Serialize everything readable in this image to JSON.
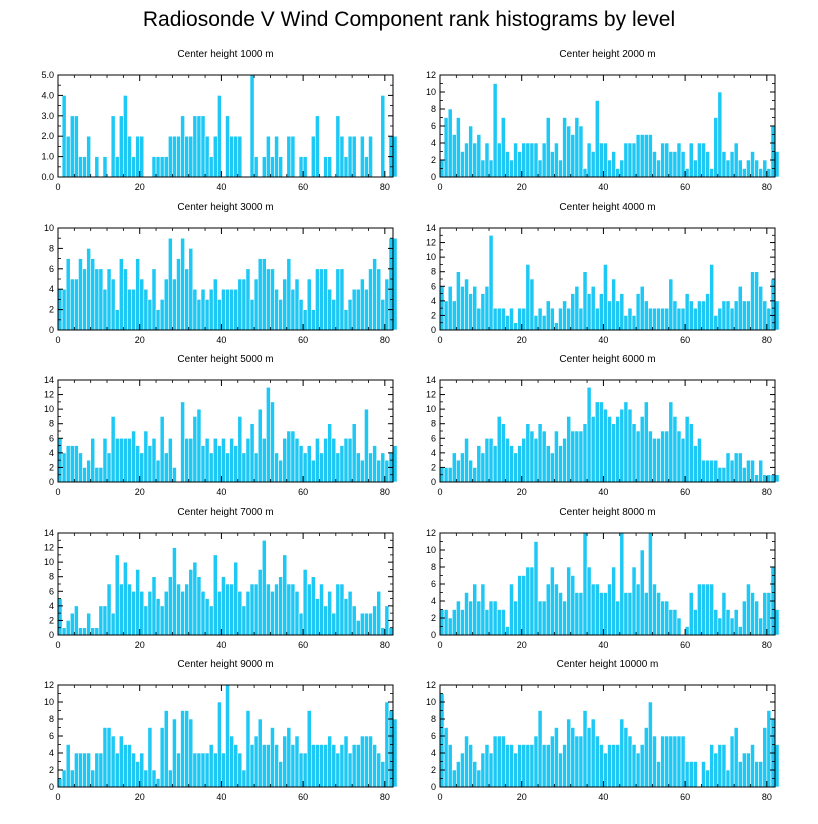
{
  "title": "Radiosonde V Wind Component rank histograms by level",
  "colors": {
    "bar": "#1ec8f5",
    "bar_edge": "#ffffff",
    "axis": "#000000"
  },
  "chart_data": [
    {
      "type": "bar",
      "title": "Center height 1000 m",
      "xlim": [
        0,
        82
      ],
      "ylim": [
        0,
        5
      ],
      "xticks": [
        0,
        20,
        40,
        60,
        80
      ],
      "yticks": [
        0,
        1,
        2,
        3,
        4,
        5
      ],
      "ytick_labels": [
        "0.0",
        "1.0",
        "2.0",
        "3.0",
        "4.0",
        "5.0"
      ],
      "values": [
        0,
        4,
        2,
        3,
        3,
        1,
        1,
        2,
        0,
        1,
        0,
        1,
        0,
        3,
        1,
        3,
        4,
        2,
        1,
        2,
        2,
        0,
        0,
        1,
        1,
        1,
        1,
        2,
        2,
        2,
        3,
        2,
        2,
        3,
        3,
        3,
        2,
        1,
        2,
        4,
        0,
        3,
        2,
        2,
        2,
        0,
        0,
        5,
        1,
        0,
        1,
        2,
        1,
        2,
        1,
        0,
        2,
        2,
        0,
        1,
        1,
        0,
        2,
        3,
        0,
        1,
        1,
        0,
        3,
        2,
        1,
        2,
        2,
        0,
        2,
        1,
        2,
        0,
        0,
        4,
        0,
        2,
        2
      ]
    },
    {
      "type": "bar",
      "title": "Center height 2000 m",
      "xlim": [
        0,
        82
      ],
      "ylim": [
        0,
        12
      ],
      "xticks": [
        0,
        20,
        40,
        60,
        80
      ],
      "yticks": [
        0,
        2,
        4,
        6,
        8,
        10,
        12
      ],
      "ytick_labels": [
        "0",
        "2",
        "4",
        "6",
        "8",
        "10",
        "12"
      ],
      "values": [
        2,
        7,
        8,
        5,
        7,
        3,
        4,
        6,
        4,
        5,
        2,
        4,
        2,
        11,
        4,
        7,
        3,
        2,
        4,
        3,
        4,
        4,
        4,
        4,
        2,
        4,
        7,
        3,
        4,
        2,
        7,
        6,
        5,
        7,
        6,
        1,
        4,
        3,
        9,
        4,
        4,
        2,
        3,
        1,
        2,
        4,
        4,
        4,
        5,
        5,
        5,
        5,
        3,
        2,
        4,
        4,
        3,
        3,
        4,
        3,
        1,
        4,
        2,
        4,
        4,
        3,
        1,
        7,
        10,
        3,
        2,
        3,
        4,
        2,
        1,
        2,
        3,
        2,
        1,
        2,
        1,
        6,
        3
      ]
    },
    {
      "type": "bar",
      "title": "Center height 3000 m",
      "xlim": [
        0,
        82
      ],
      "ylim": [
        0,
        10
      ],
      "xticks": [
        0,
        20,
        40,
        60,
        80
      ],
      "yticks": [
        0,
        2,
        4,
        6,
        8,
        10
      ],
      "ytick_labels": [
        "0",
        "2",
        "4",
        "6",
        "8",
        "10"
      ],
      "values": [
        4,
        4,
        7,
        5,
        5,
        7,
        6,
        8,
        7,
        6,
        6,
        4,
        6,
        5,
        2,
        7,
        6,
        4,
        4,
        7,
        5,
        4,
        3,
        6,
        2,
        3,
        5,
        9,
        5,
        7,
        9,
        6,
        8,
        4,
        3,
        4,
        3,
        4,
        5,
        3,
        4,
        4,
        4,
        4,
        5,
        5,
        6,
        3,
        5,
        7,
        7,
        6,
        6,
        4,
        3,
        5,
        7,
        4,
        5,
        3,
        2,
        5,
        2,
        6,
        6,
        6,
        4,
        3,
        6,
        6,
        2,
        3,
        4,
        4,
        5,
        4,
        6,
        7,
        6,
        3,
        5,
        9,
        9
      ]
    },
    {
      "type": "bar",
      "title": "Center height 4000 m",
      "xlim": [
        0,
        82
      ],
      "ylim": [
        0,
        14
      ],
      "xticks": [
        0,
        20,
        40,
        60,
        80
      ],
      "yticks": [
        0,
        2,
        4,
        6,
        8,
        10,
        12,
        14
      ],
      "ytick_labels": [
        "0",
        "2",
        "4",
        "6",
        "8",
        "10",
        "12",
        "14"
      ],
      "values": [
        6,
        4,
        6,
        4,
        8,
        6,
        7,
        5,
        6,
        3,
        5,
        6,
        13,
        3,
        3,
        3,
        2,
        3,
        1,
        3,
        3,
        9,
        7,
        2,
        3,
        2,
        4,
        3,
        1,
        3,
        4,
        3,
        5,
        6,
        3,
        8,
        5,
        6,
        3,
        5,
        9,
        4,
        7,
        4,
        5,
        2,
        3,
        2,
        5,
        6,
        4,
        3,
        3,
        3,
        3,
        3,
        7,
        4,
        3,
        3,
        5,
        4,
        3,
        4,
        4,
        5,
        9,
        2,
        3,
        4,
        4,
        3,
        4,
        6,
        4,
        4,
        8,
        8,
        6,
        4,
        3,
        7,
        4
      ]
    },
    {
      "type": "bar",
      "title": "Center height 5000 m",
      "xlim": [
        0,
        82
      ],
      "ylim": [
        0,
        14
      ],
      "xticks": [
        0,
        20,
        40,
        60,
        80
      ],
      "yticks": [
        0,
        2,
        4,
        6,
        8,
        10,
        12,
        14
      ],
      "ytick_labels": [
        "0",
        "2",
        "4",
        "6",
        "8",
        "10",
        "12",
        "14"
      ],
      "values": [
        6,
        4,
        5,
        5,
        5,
        4,
        2,
        3,
        6,
        2,
        2,
        6,
        4,
        9,
        6,
        6,
        6,
        6,
        7,
        5,
        4,
        7,
        5,
        6,
        3,
        9,
        4,
        6,
        2,
        0,
        11,
        6,
        6,
        9,
        10,
        5,
        6,
        4,
        6,
        5,
        6,
        4,
        6,
        5,
        9,
        4,
        6,
        8,
        4,
        10,
        6,
        13,
        11,
        4,
        3,
        6,
        7,
        7,
        6,
        5,
        4,
        5,
        3,
        6,
        4,
        6,
        8,
        6,
        4,
        5,
        6,
        6,
        8,
        4,
        3,
        10,
        4,
        5,
        3,
        4,
        3,
        4,
        5
      ]
    },
    {
      "type": "bar",
      "title": "Center height 6000 m",
      "xlim": [
        0,
        82
      ],
      "ylim": [
        0,
        14
      ],
      "xticks": [
        0,
        20,
        40,
        60,
        80
      ],
      "yticks": [
        0,
        2,
        4,
        6,
        8,
        10,
        12,
        14
      ],
      "ytick_labels": [
        "0",
        "2",
        "4",
        "6",
        "8",
        "10",
        "12",
        "14"
      ],
      "values": [
        2,
        2,
        2,
        4,
        3,
        4,
        6,
        3,
        2,
        5,
        4,
        6,
        6,
        5,
        9,
        8,
        6,
        5,
        4,
        5,
        6,
        8,
        7,
        6,
        8,
        7,
        5,
        4,
        7,
        5,
        6,
        9,
        7,
        7,
        7,
        8,
        13,
        9,
        11,
        11,
        10,
        9,
        8,
        9,
        10,
        11,
        10,
        8,
        7,
        9,
        11,
        7,
        6,
        6,
        7,
        7,
        11,
        9,
        7,
        6,
        9,
        8,
        5,
        6,
        3,
        3,
        3,
        3,
        2,
        2,
        4,
        3,
        4,
        4,
        2,
        3,
        3,
        1,
        3,
        1,
        1,
        1,
        1
      ]
    },
    {
      "type": "bar",
      "title": "Center height 7000 m",
      "xlim": [
        0,
        82
      ],
      "ylim": [
        0,
        14
      ],
      "xticks": [
        0,
        20,
        40,
        60,
        80
      ],
      "yticks": [
        0,
        2,
        4,
        6,
        8,
        10,
        12,
        14
      ],
      "ytick_labels": [
        "0",
        "2",
        "4",
        "6",
        "8",
        "10",
        "12",
        "14"
      ],
      "values": [
        5,
        1,
        2,
        3,
        4,
        1,
        1,
        3,
        1,
        1,
        4,
        4,
        7,
        3,
        11,
        7,
        10,
        7,
        6,
        9,
        6,
        4,
        6,
        8,
        5,
        4,
        6,
        8,
        12,
        7,
        6,
        7,
        9,
        10,
        8,
        6,
        5,
        4,
        11,
        6,
        8,
        7,
        7,
        10,
        6,
        4,
        6,
        7,
        7,
        9,
        13,
        7,
        6,
        7,
        8,
        11,
        7,
        7,
        6,
        3,
        9,
        7,
        8,
        5,
        7,
        4,
        6,
        3,
        7,
        7,
        5,
        6,
        4,
        2,
        3,
        3,
        3,
        4,
        6,
        1,
        4,
        1,
        0
      ]
    },
    {
      "type": "bar",
      "title": "Center height 8000 m",
      "xlim": [
        0,
        82
      ],
      "ylim": [
        0,
        12
      ],
      "xticks": [
        0,
        20,
        40,
        60,
        80
      ],
      "yticks": [
        0,
        2,
        4,
        6,
        8,
        10,
        12
      ],
      "ytick_labels": [
        "0",
        "2",
        "4",
        "6",
        "8",
        "10",
        "12"
      ],
      "values": [
        3,
        3,
        2,
        3,
        4,
        3,
        5,
        4,
        6,
        4,
        6,
        3,
        4,
        4,
        3,
        3,
        1,
        6,
        4,
        7,
        7,
        8,
        8,
        11,
        4,
        4,
        6,
        8,
        6,
        5,
        4,
        8,
        7,
        5,
        5,
        12,
        8,
        6,
        6,
        5,
        5,
        6,
        8,
        4,
        12,
        5,
        5,
        8,
        6,
        10,
        5,
        12,
        6,
        5,
        4,
        4,
        3,
        3,
        2,
        0,
        1,
        5,
        3,
        6,
        6,
        6,
        6,
        3,
        2,
        5,
        3,
        2,
        3,
        1,
        4,
        6,
        5,
        4,
        2,
        5,
        5,
        8,
        3
      ]
    },
    {
      "type": "bar",
      "title": "Center height 9000 m",
      "xlim": [
        0,
        82
      ],
      "ylim": [
        0,
        12
      ],
      "xticks": [
        0,
        20,
        40,
        60,
        80
      ],
      "yticks": [
        0,
        2,
        4,
        6,
        8,
        10,
        12
      ],
      "ytick_labels": [
        "0",
        "2",
        "4",
        "6",
        "8",
        "10",
        "12"
      ],
      "values": [
        1,
        2,
        5,
        2,
        4,
        4,
        4,
        4,
        2,
        4,
        4,
        7,
        7,
        6,
        4,
        6,
        5,
        5,
        4,
        3,
        4,
        2,
        7,
        2,
        1,
        7,
        9,
        2,
        8,
        4,
        9,
        9,
        8,
        4,
        4,
        4,
        4,
        5,
        4,
        10,
        4,
        12,
        6,
        5,
        4,
        2,
        9,
        5,
        6,
        8,
        5,
        5,
        7,
        5,
        3,
        6,
        7,
        5,
        6,
        4,
        4,
        9,
        5,
        5,
        5,
        5,
        6,
        5,
        4,
        5,
        6,
        4,
        5,
        5,
        6,
        6,
        6,
        5,
        4,
        3,
        10,
        9,
        8
      ]
    },
    {
      "type": "bar",
      "title": "Center height 10000 m",
      "xlim": [
        0,
        82
      ],
      "ylim": [
        0,
        12
      ],
      "xticks": [
        0,
        20,
        40,
        60,
        80
      ],
      "yticks": [
        0,
        2,
        4,
        6,
        8,
        10,
        12
      ],
      "ytick_labels": [
        "0",
        "2",
        "4",
        "6",
        "8",
        "10",
        "12"
      ],
      "values": [
        11,
        7,
        5,
        2,
        3,
        4,
        6,
        5,
        3,
        2,
        4,
        5,
        4,
        6,
        6,
        6,
        5,
        5,
        4,
        5,
        5,
        5,
        5,
        6,
        9,
        5,
        5,
        6,
        7,
        4,
        5,
        8,
        7,
        6,
        6,
        9,
        7,
        8,
        6,
        5,
        4,
        5,
        5,
        5,
        8,
        7,
        6,
        5,
        4,
        5,
        7,
        10,
        6,
        3,
        6,
        6,
        6,
        6,
        6,
        6,
        3,
        3,
        3,
        0,
        3,
        2,
        5,
        4,
        5,
        5,
        2,
        6,
        7,
        3,
        4,
        4,
        5,
        3,
        3,
        7,
        9,
        8,
        5
      ]
    }
  ]
}
